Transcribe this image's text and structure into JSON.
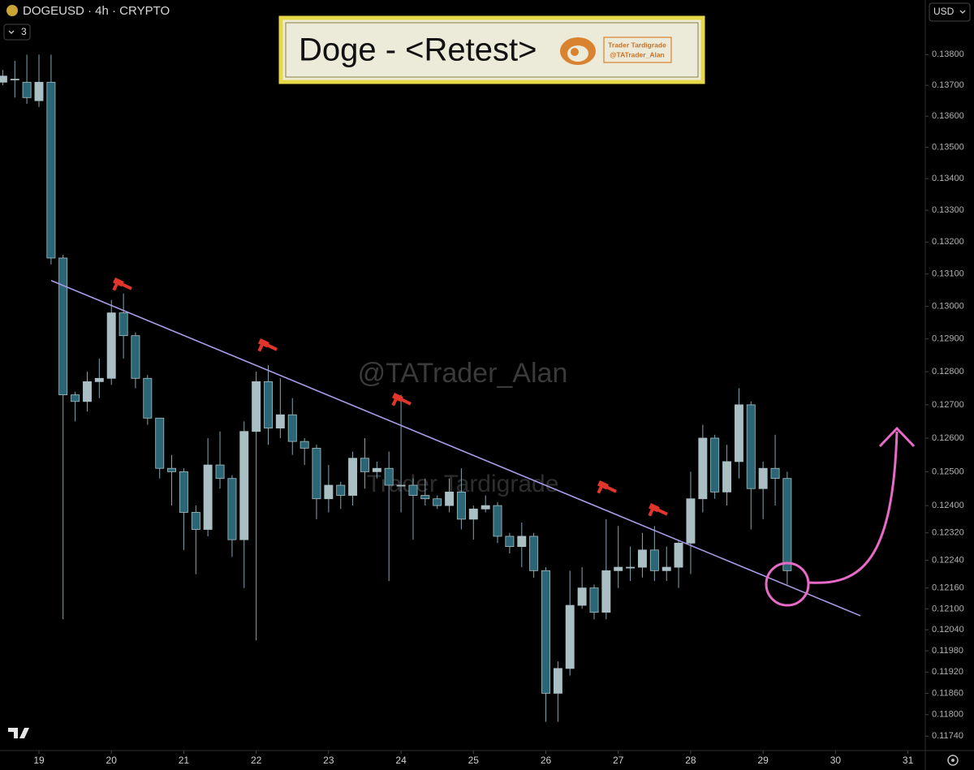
{
  "chart_data": {
    "type": "candlestick",
    "title": "DOGEUSD · 4h · CRYPTO",
    "indicator_count": "3",
    "currency": "USD",
    "annotation": "Doge - <Retest>",
    "logo_name": "Trader Tardigrade",
    "logo_handle": "@TATrader_Alan",
    "watermark_handle": "@TATrader_Alan",
    "watermark_name": "Trader Tardigrade",
    "log_scale": true,
    "up_color": "#a9bfc4",
    "down_color": "#2b6676",
    "wick_color": "#7fa8b3",
    "trendline_color": "#a99be6",
    "x": [
      18.5,
      18.667,
      18.833,
      19,
      19.167,
      19.333,
      19.5,
      19.667,
      19.833,
      20,
      20.167,
      20.333,
      20.5,
      20.667,
      20.833,
      21,
      21.167,
      21.333,
      21.5,
      21.667,
      21.833,
      22,
      22.167,
      22.333,
      22.5,
      22.667,
      22.833,
      23,
      23.167,
      23.333,
      23.5,
      23.667,
      23.833,
      24,
      24.167,
      24.333,
      24.5,
      24.667,
      24.833,
      25,
      25.167,
      25.333,
      25.5,
      25.667,
      25.833,
      26,
      26.167,
      26.333,
      26.5,
      26.667,
      26.833,
      27,
      27.167,
      27.333,
      27.5,
      27.667,
      27.833,
      28,
      28.167,
      28.333,
      28.5,
      28.667,
      28.833,
      29,
      29.167,
      29.333
    ],
    "open": [
      0.1371,
      0.1372,
      0.1371,
      0.1365,
      0.1371,
      0.1315,
      0.1273,
      0.1271,
      0.1277,
      0.1278,
      0.1298,
      0.1291,
      0.1278,
      0.1266,
      0.1251,
      0.125,
      0.1238,
      0.1233,
      0.1252,
      0.1248,
      0.123,
      0.1262,
      0.1277,
      0.1263,
      0.1267,
      0.1259,
      0.1257,
      0.1242,
      0.1246,
      0.1243,
      0.1254,
      0.125,
      0.1251,
      0.1246,
      0.1246,
      0.1243,
      0.1242,
      0.124,
      0.1244,
      0.1236,
      0.1239,
      0.124,
      0.1231,
      0.1228,
      0.1231,
      0.1221,
      0.1186,
      0.1193,
      0.1211,
      0.1216,
      0.1209,
      0.1221,
      0.1222,
      0.1222,
      0.1227,
      0.1221,
      0.1222,
      0.1229,
      0.1242,
      0.126,
      0.1244,
      0.1253,
      0.127,
      0.1245,
      0.1251,
      0.1248
    ],
    "high": [
      0.1375,
      0.1378,
      0.138,
      0.138,
      0.138,
      0.1316,
      0.1274,
      0.128,
      0.1284,
      0.1302,
      0.1304,
      0.1292,
      0.1279,
      0.1266,
      0.1255,
      0.1251,
      0.124,
      0.126,
      0.1262,
      0.1249,
      0.1265,
      0.128,
      0.1282,
      0.1278,
      0.1272,
      0.126,
      0.1258,
      0.1252,
      0.1247,
      0.1256,
      0.126,
      0.1253,
      0.1256,
      0.1273,
      0.1248,
      0.1248,
      0.1243,
      0.1248,
      0.1251,
      0.124,
      0.1243,
      0.1241,
      0.1232,
      0.1235,
      0.1232,
      0.1222,
      0.1195,
      0.1221,
      0.1222,
      0.1217,
      0.1236,
      0.1234,
      0.1228,
      0.1232,
      0.1234,
      0.1228,
      0.123,
      0.125,
      0.1264,
      0.1261,
      0.1258,
      0.1275,
      0.1271,
      0.1253,
      0.1261,
      0.125
    ],
    "low": [
      0.137,
      0.1366,
      0.1364,
      0.1363,
      0.1313,
      0.1207,
      0.1265,
      0.1268,
      0.1272,
      0.1276,
      0.1284,
      0.1275,
      0.1264,
      0.1248,
      0.124,
      0.1227,
      0.122,
      0.1231,
      0.1245,
      0.1225,
      0.1216,
      0.1201,
      0.1258,
      0.126,
      0.1255,
      0.1252,
      0.1236,
      0.1238,
      0.1239,
      0.124,
      0.1245,
      0.1248,
      0.1218,
      0.1238,
      0.123,
      0.124,
      0.1239,
      0.1238,
      0.1233,
      0.123,
      0.1238,
      0.1229,
      0.1226,
      0.1222,
      0.1219,
      0.1178,
      0.1178,
      0.1191,
      0.121,
      0.1207,
      0.1207,
      0.1216,
      0.1218,
      0.1219,
      0.1218,
      0.1218,
      0.1216,
      0.122,
      0.1238,
      0.1242,
      0.124,
      0.1248,
      0.1233,
      0.1236,
      0.124,
      0.1217
    ],
    "close": [
      0.1373,
      0.1372,
      0.1366,
      0.1371,
      0.1315,
      0.1273,
      0.1271,
      0.1277,
      0.1278,
      0.1298,
      0.1291,
      0.1278,
      0.1266,
      0.1251,
      0.125,
      0.1238,
      0.1233,
      0.1252,
      0.1248,
      0.123,
      0.1262,
      0.1277,
      0.1263,
      0.1267,
      0.1259,
      0.1257,
      0.1242,
      0.1246,
      0.1243,
      0.1254,
      0.125,
      0.1251,
      0.1246,
      0.1246,
      0.1243,
      0.1242,
      0.124,
      0.1244,
      0.1236,
      0.1239,
      0.124,
      0.1231,
      0.1228,
      0.1231,
      0.1221,
      0.1186,
      0.1193,
      0.1211,
      0.1216,
      0.1209,
      0.1221,
      0.1222,
      0.1222,
      0.1227,
      0.1221,
      0.1222,
      0.1229,
      0.1242,
      0.126,
      0.1244,
      0.1253,
      0.127,
      0.1245,
      0.1251,
      0.1248,
      0.1221
    ],
    "trendline": {
      "x": [
        19.168,
        30.345
      ],
      "y": [
        0.1308,
        0.1208
      ]
    },
    "xlim": [
      18.462,
      31.24
    ],
    "xticks": [
      19,
      20,
      21,
      22,
      23,
      24,
      25,
      26,
      27,
      28,
      29,
      30,
      31
    ],
    "ylim": [
      0.117,
      0.1398
    ],
    "yticks": [
      {
        "value": 0.138,
        "label": "0.13800"
      },
      {
        "value": 0.137,
        "label": "0.13700"
      },
      {
        "value": 0.136,
        "label": "0.13600"
      },
      {
        "value": 0.135,
        "label": "0.13500"
      },
      {
        "value": 0.134,
        "label": "0.13400"
      },
      {
        "value": 0.133,
        "label": "0.13300"
      },
      {
        "value": 0.132,
        "label": "0.13200"
      },
      {
        "value": 0.131,
        "label": "0.13100"
      },
      {
        "value": 0.13,
        "label": "0.13000"
      },
      {
        "value": 0.129,
        "label": "0.12900"
      },
      {
        "value": 0.128,
        "label": "0.12800"
      },
      {
        "value": 0.127,
        "label": "0.12700"
      },
      {
        "value": 0.126,
        "label": "0.12600"
      },
      {
        "value": 0.125,
        "label": "0.12500"
      },
      {
        "value": 0.124,
        "label": "0.12400"
      },
      {
        "value": 0.1232,
        "label": "0.12320"
      },
      {
        "value": 0.1224,
        "label": "0.12240"
      },
      {
        "value": 0.1216,
        "label": "0.12160"
      },
      {
        "value": 0.121,
        "label": "0.12100"
      },
      {
        "value": 0.1204,
        "label": "0.12040"
      },
      {
        "value": 0.1198,
        "label": "0.11980"
      },
      {
        "value": 0.1192,
        "label": "0.11920"
      },
      {
        "value": 0.1186,
        "label": "0.11860"
      },
      {
        "value": 0.118,
        "label": "0.11800"
      },
      {
        "value": 0.1174,
        "label": "0.11740"
      }
    ]
  }
}
